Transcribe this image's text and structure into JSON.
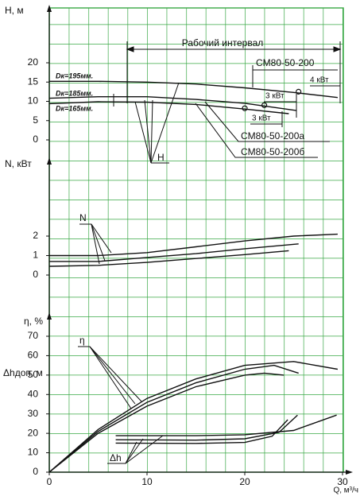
{
  "chart_data": [
    {
      "type": "line",
      "y_label": "H, м",
      "ylim": [
        0,
        20
      ],
      "yticks": [
        0,
        5,
        10,
        15,
        20
      ],
      "color": "#111",
      "series": [
        {
          "name": "Dк=195мм.",
          "x": [
            0,
            5,
            10,
            15,
            20,
            25,
            29.5
          ],
          "values": [
            15.2,
            15.2,
            15,
            14.5,
            13.5,
            12.3,
            11
          ]
        },
        {
          "name": "Dк=185мм.",
          "x": [
            0,
            5,
            10,
            15,
            20,
            25.3
          ],
          "values": [
            10.8,
            11.2,
            11.2,
            10.5,
            9.5,
            7.6
          ]
        },
        {
          "name": "Dк=165мм.",
          "x": [
            0,
            5,
            10,
            15,
            20,
            24.5
          ],
          "values": [
            9.4,
            9.9,
            9.8,
            9.2,
            8,
            6.8
          ]
        }
      ],
      "points": {
        "x": [
          25.5,
          22,
          20
        ],
        "values": [
          12.5,
          9,
          8.2
        ]
      },
      "annotations": [
        "Рабочий интервал",
        "CM80-50-200",
        "CM80-50-200а",
        "CM80-50-200б",
        "4 кВт",
        "3 кВт",
        "3 кВт",
        "H"
      ]
    },
    {
      "type": "line",
      "y_label": "N, кВт",
      "ylim": [
        0,
        2
      ],
      "yticks": [
        0,
        1,
        2
      ],
      "color": "#111",
      "series": [
        {
          "x": [
            0,
            5,
            10,
            15,
            20,
            25,
            29.5
          ],
          "values": [
            1,
            1,
            1.15,
            1.45,
            1.75,
            2,
            2.1
          ]
        },
        {
          "x": [
            0,
            5,
            10,
            15,
            20,
            25.5
          ],
          "values": [
            0.7,
            0.7,
            0.9,
            1.1,
            1.35,
            1.6
          ]
        },
        {
          "x": [
            0,
            5,
            10,
            15,
            20,
            24.5
          ],
          "values": [
            0.45,
            0.5,
            0.65,
            0.85,
            1.05,
            1.25
          ]
        }
      ],
      "annotations": [
        "N"
      ]
    },
    {
      "type": "line",
      "y_label": "η, %",
      "y2_label": "Δhдоп, м",
      "ylim": [
        0,
        70
      ],
      "yticks": [
        0,
        10,
        20,
        30,
        40,
        50,
        60,
        70
      ],
      "color": "#111",
      "xlim": [
        0,
        30
      ],
      "xticks": [
        0,
        10,
        20,
        30
      ],
      "x_label": "Q, м³/ч",
      "series": [
        {
          "x": [
            0,
            5,
            10,
            15,
            20,
            25,
            29.5
          ],
          "values": [
            0,
            22,
            38,
            48,
            55,
            57,
            53
          ]
        },
        {
          "x": [
            0,
            5,
            10,
            15,
            20,
            23,
            25.5
          ],
          "values": [
            0,
            21,
            36,
            46,
            53,
            55,
            51
          ]
        },
        {
          "x": [
            0,
            5,
            10,
            15,
            20,
            22,
            24
          ],
          "values": [
            0,
            20,
            34,
            44,
            50,
            51,
            50
          ]
        },
        {
          "x": [
            6.8,
            15,
            20,
            25,
            29.4
          ],
          "values": [
            18.8,
            18.8,
            19.3,
            21.5,
            29.4
          ]
        },
        {
          "x": [
            6.8,
            15,
            20,
            23.5,
            25.4
          ],
          "values": [
            16.7,
            16.5,
            17.2,
            20.5,
            29.4
          ]
        },
        {
          "x": [
            6.8,
            15,
            20,
            22.8,
            24.4
          ],
          "values": [
            15,
            14.8,
            15.3,
            18.5,
            27
          ]
        }
      ],
      "annotations": [
        "η",
        "Δh"
      ]
    }
  ]
}
